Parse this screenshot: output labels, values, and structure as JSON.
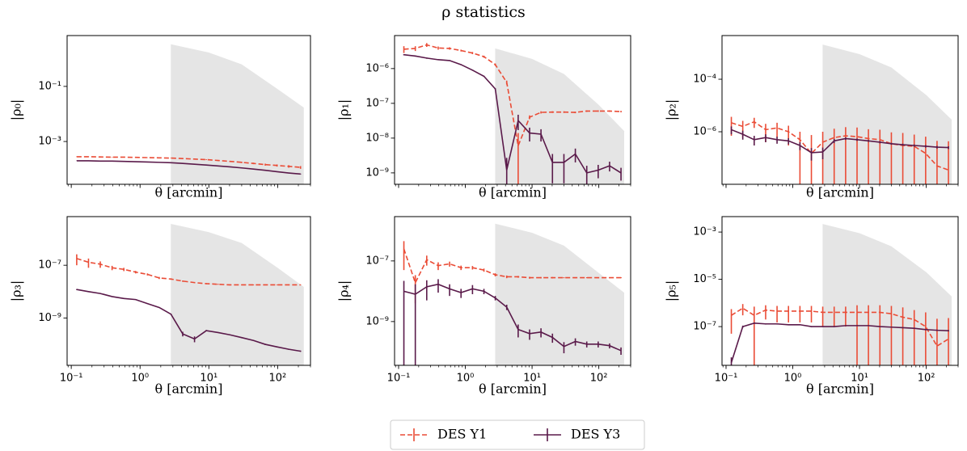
{
  "title": "ρ statistics",
  "chart_data": [
    {
      "type": "line",
      "xscale": "log",
      "yscale": "log",
      "ylabel": "|ρ₀|",
      "xlabel": "θ [arcmin]",
      "xtick_labels": false,
      "xlim": [
        0.087,
        300
      ],
      "ylim": [
        2.8e-05,
        7
      ],
      "xticks": [
        0.1,
        1,
        10,
        100
      ],
      "yticks": [
        {
          "value": 0.1,
          "label": "10⁻¹"
        },
        {
          "value": 0.001,
          "label": "10⁻³"
        }
      ],
      "x": [
        0.12,
        0.178,
        0.264,
        0.392,
        0.581,
        0.862,
        1.28,
        1.9,
        2.81,
        4.17,
        6.19,
        9.18,
        13.6,
        20.2,
        30,
        44.5,
        66,
        97.9,
        145,
        215
      ],
      "shade": {
        "color": "#e5e5e5",
        "x": [
          2.8,
          10,
          30,
          100,
          240
        ],
        "upper": [
          3.4,
          1.7,
          0.63,
          0.08,
          0.017
        ]
      },
      "series": [
        {
          "name": "DES Y1",
          "color": "#ea4c36",
          "dashed": true,
          "values": [
            0.00028,
            0.00028,
            0.000275,
            0.00027,
            0.00027,
            0.000265,
            0.00026,
            0.000255,
            0.00025,
            0.00024,
            0.00023,
            0.00022,
            0.000205,
            0.00019,
            0.000175,
            0.00016,
            0.000145,
            0.000135,
            0.000125,
            0.000115
          ],
          "errors": [
            5e-06,
            5e-06,
            5e-06,
            5e-06,
            5e-06,
            5e-06,
            5e-06,
            5e-06,
            5e-06,
            6e-06,
            6e-06,
            7e-06,
            8e-06,
            9e-06,
            1e-05,
            1e-05,
            1.2e-05,
            1.2e-05,
            1.3e-05,
            1.3e-05
          ]
        },
        {
          "name": "DES Y3",
          "color": "#5a1a4a",
          "dashed": false,
          "values": [
            0.0002,
            0.0002,
            0.000195,
            0.000195,
            0.00019,
            0.000185,
            0.00018,
            0.000175,
            0.00017,
            0.00016,
            0.00015,
            0.00014,
            0.00013,
            0.00012,
            0.00011,
            0.0001,
            9e-05,
            8e-05,
            7.2e-05,
            6.6e-05
          ],
          "errors": [
            2e-06,
            2e-06,
            2e-06,
            2e-06,
            2e-06,
            2e-06,
            2e-06,
            2e-06,
            2e-06,
            2e-06,
            2e-06,
            2e-06,
            2e-06,
            2e-06,
            2e-06,
            2e-06,
            2e-06,
            2e-06,
            2e-06,
            2e-06
          ]
        }
      ]
    },
    {
      "type": "line",
      "xscale": "log",
      "yscale": "log",
      "ylabel": "|ρ₁|",
      "xlabel": "θ [arcmin]",
      "xtick_labels": false,
      "xlim": [
        0.087,
        300
      ],
      "ylim": [
        4.7e-10,
        8.9e-06
      ],
      "xticks": [
        0.1,
        1,
        10,
        100
      ],
      "yticks": [
        {
          "value": 1e-06,
          "label": "10⁻⁶"
        },
        {
          "value": 1e-07,
          "label": "10⁻⁷"
        },
        {
          "value": 1e-08,
          "label": "10⁻⁸"
        },
        {
          "value": 1e-09,
          "label": "10⁻⁹"
        }
      ],
      "x": [
        0.12,
        0.178,
        0.264,
        0.392,
        0.581,
        0.862,
        1.28,
        1.9,
        2.81,
        4.17,
        6.19,
        9.18,
        13.6,
        20.2,
        30,
        44.5,
        66,
        97.9,
        145,
        215
      ],
      "shade": {
        "color": "#e5e5e5",
        "x": [
          2.8,
          10,
          30,
          100,
          240
        ],
        "upper": [
          3.8e-06,
          1.9e-06,
          7e-07,
          9e-08,
          1.6e-08
        ]
      },
      "series": [
        {
          "color": "#ea4c36",
          "dashed": true,
          "values": [
            3.6e-06,
            3.8e-06,
            4.8e-06,
            3.9e-06,
            3.8e-06,
            3.3e-06,
            2.8e-06,
            2.2e-06,
            1.3e-06,
            4e-07,
            6e-09,
            4e-08,
            5.5e-08,
            5.6e-08,
            5.6e-08,
            5.5e-08,
            6e-08,
            6e-08,
            6e-08,
            5.8e-08
          ],
          "errors": [
            8e-07,
            6e-07,
            6e-07,
            4e-07,
            3e-07,
            2e-07,
            2e-07,
            1.5e-07,
            1e-07,
            5e-08,
            8e-09,
            5e-09,
            4e-09,
            3e-09,
            3e-09,
            3e-09,
            3e-09,
            3e-09,
            3e-09,
            3e-09
          ]
        },
        {
          "color": "#5a1a4a",
          "dashed": false,
          "values": [
            2.5e-06,
            2.3e-06,
            2e-06,
            1.8e-06,
            1.7e-06,
            1.3e-06,
            9e-07,
            6e-07,
            2.6e-07,
            1.2e-09,
            3.2e-08,
            1.4e-08,
            1.3e-08,
            2e-09,
            2e-09,
            3.5e-09,
            1e-09,
            1.2e-09,
            1.6e-09,
            1e-09
          ],
          "errors": [
            1e-07,
            1e-07,
            8e-08,
            6e-08,
            5e-08,
            4e-08,
            3e-08,
            2e-08,
            1e-08,
            1.5e-09,
            1.5e-08,
            6e-09,
            5e-09,
            1.5e-09,
            1.5e-09,
            1.5e-09,
            6e-10,
            5e-10,
            5e-10,
            4e-10
          ]
        }
      ]
    },
    {
      "type": "line",
      "xscale": "log",
      "yscale": "log",
      "ylabel": "|ρ₂|",
      "xlabel": "θ [arcmin]",
      "xtick_labels": false,
      "xlim": [
        0.087,
        300
      ],
      "ylim": [
        1e-08,
        0.0046
      ],
      "xticks": [
        0.1,
        1,
        10,
        100
      ],
      "yticks": [
        {
          "value": 0.0001,
          "label": "10⁻⁴"
        },
        {
          "value": 1e-06,
          "label": "10⁻⁶"
        }
      ],
      "x": [
        0.12,
        0.178,
        0.264,
        0.392,
        0.581,
        0.862,
        1.28,
        1.9,
        2.81,
        4.17,
        6.19,
        9.18,
        13.6,
        20.2,
        30,
        44.5,
        66,
        97.9,
        145,
        215
      ],
      "shade": {
        "color": "#e5e5e5",
        "x": [
          2.8,
          10,
          30,
          100,
          240
        ],
        "upper": [
          0.0021,
          0.0009,
          0.00028,
          2.5e-05,
          2.9e-06
        ]
      },
      "series": [
        {
          "color": "#ea4c36",
          "dashed": true,
          "values": [
            2.2e-06,
            1.6e-06,
            2.4e-06,
            1.2e-06,
            1.4e-06,
            1e-06,
            5e-07,
            1.5e-07,
            4e-07,
            6e-07,
            7e-07,
            6.5e-07,
            5.5e-07,
            5e-07,
            3.5e-07,
            3e-07,
            2.8e-07,
            1.5e-07,
            5e-08,
            3.5e-08
          ],
          "errors": [
            1.5e-06,
            1e-06,
            1e-06,
            8e-07,
            8e-07,
            7e-07,
            5e-07,
            6e-07,
            6e-07,
            7e-07,
            8e-07,
            8e-07,
            7e-07,
            7e-07,
            6e-07,
            6e-07,
            5e-07,
            5e-07,
            4e-07,
            4e-07
          ]
        },
        {
          "color": "#5a1a4a",
          "dashed": false,
          "values": [
            1.2e-06,
            8e-07,
            5e-07,
            6e-07,
            5e-07,
            4.5e-07,
            3e-07,
            1.6e-07,
            1.7e-07,
            4.5e-07,
            5.5e-07,
            5e-07,
            4.5e-07,
            4e-07,
            3.5e-07,
            3.2e-07,
            3e-07,
            2.8e-07,
            2.6e-07,
            2.5e-07
          ],
          "errors": [
            4e-07,
            3e-07,
            2e-07,
            2e-07,
            1.5e-07,
            1.2e-07,
            1e-07,
            8e-08,
            8e-08,
            8e-08,
            6e-08,
            5e-08,
            4e-08,
            4e-08,
            3e-08,
            3e-08,
            3e-08,
            3e-08,
            3e-08,
            3e-08
          ]
        }
      ]
    },
    {
      "type": "line",
      "xscale": "log",
      "yscale": "log",
      "ylabel": "|ρ₃|",
      "xlabel": "θ [arcmin]",
      "xtick_labels": true,
      "xlim": [
        0.087,
        300
      ],
      "ylim": [
        1.6e-11,
        7e-06
      ],
      "xticks": [
        {
          "value": 0.1,
          "label": "10⁻¹"
        },
        {
          "value": 1,
          "label": "10⁰"
        },
        {
          "value": 10,
          "label": "10¹"
        },
        {
          "value": 100,
          "label": "10²"
        }
      ],
      "yticks": [
        {
          "value": 1e-07,
          "label": "10⁻⁷"
        },
        {
          "value": 1e-09,
          "label": "10⁻⁹"
        }
      ],
      "x": [
        0.12,
        0.178,
        0.264,
        0.392,
        0.581,
        0.862,
        1.28,
        1.9,
        2.81,
        4.17,
        6.19,
        9.18,
        13.6,
        20.2,
        30,
        44.5,
        66,
        97.9,
        145,
        215
      ],
      "shade": {
        "color": "#e5e5e5",
        "x": [
          2.8,
          10,
          30,
          100,
          240
        ],
        "upper": [
          3.7e-06,
          1.8e-06,
          7e-07,
          8e-08,
          1.5e-08
        ]
      },
      "series": [
        {
          "color": "#ea4c36",
          "dashed": true,
          "values": [
            1.8e-07,
            1.3e-07,
            1.1e-07,
            8e-08,
            7e-08,
            5.5e-08,
            4.5e-08,
            3.3e-08,
            3e-08,
            2.5e-08,
            2.2e-08,
            2e-08,
            1.9e-08,
            1.8e-08,
            1.8e-08,
            1.8e-08,
            1.8e-08,
            1.8e-08,
            1.8e-08,
            1.8e-08
          ],
          "errors": [
            8e-08,
            5e-08,
            3e-08,
            1.5e-08,
            1e-08,
            6e-09,
            4e-09,
            3e-09,
            2e-09,
            1.5e-09,
            1e-09,
            1e-09,
            8e-10,
            8e-10,
            6e-10,
            6e-10,
            5e-10,
            5e-10,
            5e-10,
            5e-10
          ]
        },
        {
          "color": "#5a1a4a",
          "dashed": false,
          "values": [
            1.2e-08,
            1e-08,
            8.5e-09,
            6.5e-09,
            5.5e-09,
            5e-09,
            3.5e-09,
            2.5e-09,
            1.4e-09,
            2.5e-10,
            1.6e-10,
            3.3e-10,
            2.8e-10,
            2.3e-10,
            1.8e-10,
            1.4e-10,
            1e-10,
            8e-11,
            6.5e-11,
            5.5e-11
          ],
          "errors": [
            5e-10,
            4e-10,
            3e-10,
            2e-10,
            2e-10,
            1.5e-10,
            1e-10,
            8e-11,
            6e-11,
            5e-11,
            4e-11,
            2e-11,
            1e-11,
            1e-11,
            8e-12,
            6e-12,
            5e-12,
            4e-12,
            3e-12,
            3e-12
          ]
        }
      ]
    },
    {
      "type": "line",
      "xscale": "log",
      "yscale": "log",
      "ylabel": "|ρ₄|",
      "xlabel": "θ [arcmin]",
      "xtick_labels": true,
      "xlim": [
        0.087,
        300
      ],
      "ylim": [
        3.6e-11,
        2.9e-06
      ],
      "xticks": [
        {
          "value": 0.1,
          "label": "10⁻¹"
        },
        {
          "value": 1,
          "label": "10⁰"
        },
        {
          "value": 10,
          "label": "10¹"
        },
        {
          "value": 100,
          "label": "10²"
        }
      ],
      "yticks": [
        {
          "value": 1e-07,
          "label": "10⁻⁷"
        },
        {
          "value": 1e-09,
          "label": "10⁻⁹"
        }
      ],
      "x": [
        0.12,
        0.178,
        0.264,
        0.392,
        0.581,
        0.862,
        1.28,
        1.9,
        2.81,
        4.17,
        6.19,
        9.18,
        13.6,
        20.2,
        30,
        44.5,
        66,
        97.9,
        145,
        215
      ],
      "shade": {
        "color": "#e5e5e5",
        "x": [
          2.8,
          10,
          30,
          100,
          240
        ],
        "upper": [
          1.7e-06,
          8.5e-07,
          3.2e-07,
          4e-08,
          9e-09
        ]
      },
      "series": [
        {
          "color": "#ea4c36",
          "dashed": true,
          "values": [
            2.5e-07,
            1.9e-08,
            1.1e-07,
            7e-08,
            8e-08,
            6e-08,
            6e-08,
            5e-08,
            3.5e-08,
            3e-08,
            3e-08,
            2.8e-08,
            2.8e-08,
            2.8e-08,
            2.8e-08,
            2.8e-08,
            2.8e-08,
            2.8e-08,
            2.8e-08,
            2.8e-08
          ],
          "errors": [
            2e-07,
            1.5e-08,
            4e-08,
            2e-08,
            1.5e-08,
            1e-08,
            8e-09,
            6e-09,
            4e-09,
            3e-09,
            2e-09,
            2e-09,
            1.5e-09,
            1.5e-09,
            1e-09,
            1e-09,
            1e-09,
            1e-09,
            1e-09,
            1e-09
          ]
        },
        {
          "color": "#5a1a4a",
          "dashed": false,
          "values": [
            1e-08,
            8e-09,
            1.4e-08,
            1.7e-08,
            1.2e-08,
            9e-09,
            1.2e-08,
            1e-08,
            6e-09,
            3e-09,
            5.5e-10,
            4e-10,
            4.5e-10,
            3e-10,
            1.5e-10,
            2.2e-10,
            1.8e-10,
            1.8e-10,
            1.6e-10,
            1.1e-10
          ],
          "errors": [
            1.2e-08,
            9e-09,
            9e-09,
            8e-09,
            5e-09,
            3e-09,
            4e-09,
            2e-09,
            1e-09,
            6e-10,
            2.5e-10,
            1.5e-10,
            1.5e-10,
            1e-10,
            6e-11,
            6e-11,
            4e-11,
            4e-11,
            3e-11,
            3e-11
          ]
        }
      ]
    },
    {
      "type": "line",
      "xscale": "log",
      "yscale": "log",
      "ylabel": "|ρ₅|",
      "xlabel": "θ [arcmin]",
      "xtick_labels": true,
      "xlim": [
        0.087,
        300
      ],
      "ylim": [
        2.3e-09,
        0.0045
      ],
      "xticks": [
        {
          "value": 0.1,
          "label": "10⁻¹"
        },
        {
          "value": 1,
          "label": "10⁰"
        },
        {
          "value": 10,
          "label": "10¹"
        },
        {
          "value": 100,
          "label": "10²"
        }
      ],
      "yticks": [
        {
          "value": 0.001,
          "label": "10⁻³"
        },
        {
          "value": 1e-05,
          "label": "10⁻⁵"
        },
        {
          "value": 1e-07,
          "label": "10⁻⁷"
        }
      ],
      "x": [
        0.12,
        0.178,
        0.264,
        0.392,
        0.581,
        0.862,
        1.28,
        1.9,
        2.81,
        4.17,
        6.19,
        9.18,
        13.6,
        20.2,
        30,
        44.5,
        66,
        97.9,
        145,
        215
      ],
      "shade": {
        "color": "#e5e5e5",
        "x": [
          2.8,
          10,
          30,
          100,
          240
        ],
        "upper": [
          0.0022,
          0.0009,
          0.00025,
          2e-05,
          1.9e-06
        ]
      },
      "series": [
        {
          "color": "#ea4c36",
          "dashed": true,
          "values": [
            3e-07,
            6e-07,
            3e-07,
            5e-07,
            4.5e-07,
            4.5e-07,
            4.5e-07,
            4.5e-07,
            4e-07,
            4e-07,
            4e-07,
            4e-07,
            4e-07,
            4e-07,
            3.5e-07,
            2.5e-07,
            2e-07,
            1e-07,
            1.5e-08,
            3e-08
          ],
          "errors": [
            2.5e-07,
            3e-07,
            4e-07,
            3e-07,
            3e-07,
            3e-07,
            3e-07,
            3e-07,
            3e-07,
            3e-07,
            3e-07,
            4e-07,
            4e-07,
            4e-07,
            4e-07,
            4e-07,
            3e-07,
            3e-07,
            2e-07,
            2e-07
          ]
        },
        {
          "color": "#5a1a4a",
          "dashed": false,
          "values": [
            3e-09,
            1e-07,
            1.4e-07,
            1.3e-07,
            1.3e-07,
            1.2e-07,
            1.2e-07,
            1e-07,
            1e-07,
            1e-07,
            1.1e-07,
            1.1e-07,
            1.1e-07,
            1e-07,
            9.5e-08,
            9e-08,
            8.5e-08,
            7.5e-08,
            7e-08,
            6.7e-08
          ],
          "errors": [
            2e-09,
            1e-08,
            1e-08,
            8e-09,
            8e-09,
            6e-09,
            6e-09,
            5e-09,
            5e-09,
            5e-09,
            5e-09,
            5e-09,
            5e-09,
            5e-09,
            5e-09,
            5e-09,
            5e-09,
            5e-09,
            5e-09,
            5e-09
          ]
        }
      ]
    }
  ]
}
